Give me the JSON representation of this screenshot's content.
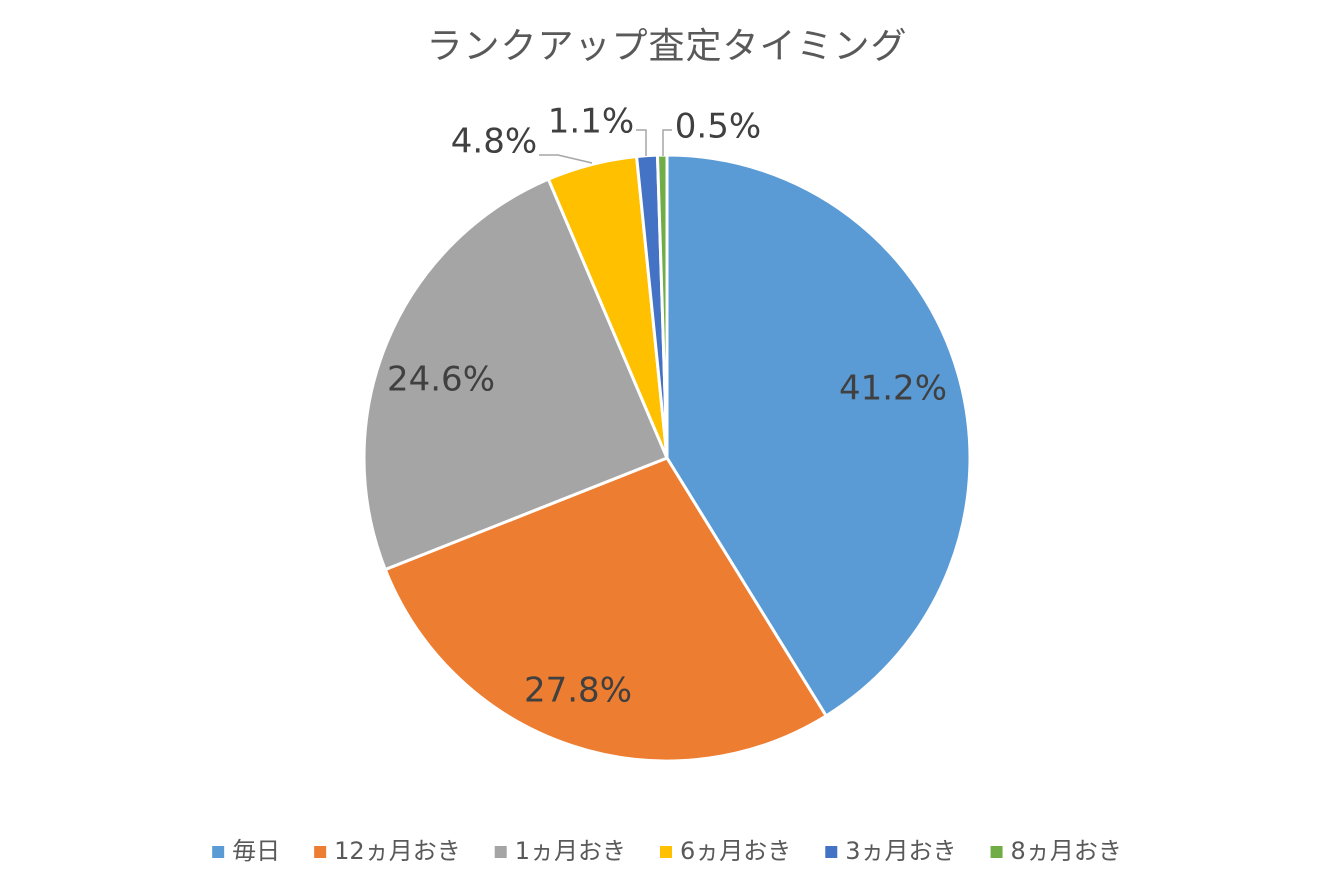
{
  "chart_data": {
    "type": "pie",
    "title": "ランクアップ査定タイミング",
    "legend_position": "bottom",
    "start_angle_deg": 0,
    "direction": "clockwise",
    "slices": [
      {
        "name": "毎日",
        "value": 41.2,
        "label": "41.2%",
        "color": "#5B9BD5"
      },
      {
        "name": "12ヵ月おき",
        "value": 27.8,
        "label": "27.8%",
        "color": "#ED7D31"
      },
      {
        "name": "1ヵ月おき",
        "value": 24.6,
        "label": "24.6%",
        "color": "#A5A5A5"
      },
      {
        "name": "6ヵ月おき",
        "value": 4.8,
        "label": "4.8%",
        "color": "#FFC000"
      },
      {
        "name": "3ヵ月おき",
        "value": 1.1,
        "label": "1.1%",
        "color": "#4472C4"
      },
      {
        "name": "8ヵ月おき",
        "value": 0.5,
        "label": "0.5%",
        "color": "#70AD47"
      }
    ]
  }
}
